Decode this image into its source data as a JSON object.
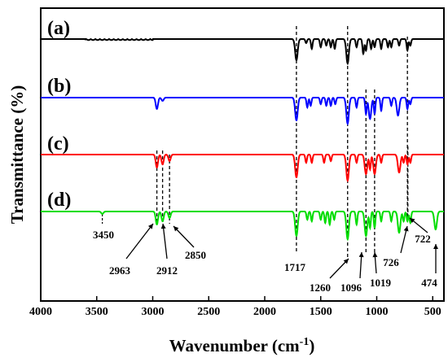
{
  "chart_data": {
    "type": "line",
    "title": "",
    "xlabel": "Wavenumber (cm",
    "xlabel_sup": "-1",
    "xlabel_end": ")",
    "ylabel": "Transmittance (%)",
    "xlim": [
      4000,
      400
    ],
    "x_reversed": true,
    "xticks": [
      4000,
      3500,
      3000,
      2500,
      2000,
      1500,
      1000,
      500
    ],
    "grid": false,
    "series": [
      {
        "name": "(a)",
        "color": "#000000",
        "peaks": [
          [
            1717,
            26
          ],
          [
            1630,
            5
          ],
          [
            1580,
            12
          ],
          [
            1500,
            10
          ],
          [
            1450,
            8
          ],
          [
            1410,
            10
          ],
          [
            1375,
            12
          ],
          [
            1260,
            30
          ],
          [
            1180,
            10
          ],
          [
            1120,
            18
          ],
          [
            1096,
            14
          ],
          [
            1050,
            12
          ],
          [
            1019,
            10
          ],
          [
            960,
            12
          ],
          [
            900,
            10
          ],
          [
            870,
            10
          ],
          [
            800,
            8
          ],
          [
            726,
            14
          ],
          [
            700,
            8
          ]
        ],
        "noise_bands": [
          [
            3600,
            3000,
            1.2
          ]
        ]
      },
      {
        "name": "(b)",
        "color": "#0000ff",
        "peaks": [
          [
            2963,
            14
          ],
          [
            2912,
            4
          ],
          [
            1717,
            28
          ],
          [
            1620,
            12
          ],
          [
            1590,
            10
          ],
          [
            1500,
            8
          ],
          [
            1450,
            10
          ],
          [
            1410,
            10
          ],
          [
            1370,
            8
          ],
          [
            1260,
            32
          ],
          [
            1180,
            12
          ],
          [
            1096,
            20
          ],
          [
            1060,
            26
          ],
          [
            1019,
            20
          ],
          [
            960,
            16
          ],
          [
            870,
            10
          ],
          [
            810,
            22
          ],
          [
            726,
            14
          ],
          [
            700,
            8
          ]
        ],
        "noise_bands": []
      },
      {
        "name": "(c)",
        "color": "#ff0000",
        "peaks": [
          [
            2963,
            16
          ],
          [
            2912,
            12
          ],
          [
            2850,
            8
          ],
          [
            1717,
            28
          ],
          [
            1630,
            10
          ],
          [
            1580,
            10
          ],
          [
            1470,
            10
          ],
          [
            1410,
            8
          ],
          [
            1260,
            32
          ],
          [
            1180,
            10
          ],
          [
            1096,
            24
          ],
          [
            1060,
            18
          ],
          [
            1019,
            24
          ],
          [
            960,
            10
          ],
          [
            800,
            22
          ],
          [
            760,
            10
          ],
          [
            726,
            12
          ],
          [
            700,
            10
          ]
        ],
        "noise_bands": []
      },
      {
        "name": "(d)",
        "color": "#00dd00",
        "peaks": [
          [
            3450,
            3
          ],
          [
            2963,
            16
          ],
          [
            2912,
            12
          ],
          [
            2850,
            8
          ],
          [
            1717,
            30
          ],
          [
            1620,
            10
          ],
          [
            1580,
            12
          ],
          [
            1500,
            10
          ],
          [
            1460,
            14
          ],
          [
            1420,
            16
          ],
          [
            1380,
            10
          ],
          [
            1260,
            34
          ],
          [
            1180,
            16
          ],
          [
            1096,
            30
          ],
          [
            1060,
            20
          ],
          [
            1019,
            20
          ],
          [
            960,
            12
          ],
          [
            870,
            12
          ],
          [
            800,
            26
          ],
          [
            760,
            12
          ],
          [
            726,
            12
          ],
          [
            700,
            14
          ],
          [
            474,
            22
          ]
        ],
        "noise_bands": []
      }
    ],
    "dashed_lines": [
      1717,
      1260,
      1096,
      1019,
      726,
      722,
      2963,
      2912,
      2850
    ],
    "annotations": [
      {
        "label": "3450",
        "x": 3450
      },
      {
        "label": "2963",
        "x": 2963
      },
      {
        "label": "2912",
        "x": 2912
      },
      {
        "label": "2850",
        "x": 2850
      },
      {
        "label": "1717",
        "x": 1717
      },
      {
        "label": "1260",
        "x": 1260
      },
      {
        "label": "1096",
        "x": 1096
      },
      {
        "label": "1019",
        "x": 1019
      },
      {
        "label": "726",
        "x": 726
      },
      {
        "label": "722",
        "x": 722
      },
      {
        "label": "474",
        "x": 474
      }
    ]
  }
}
